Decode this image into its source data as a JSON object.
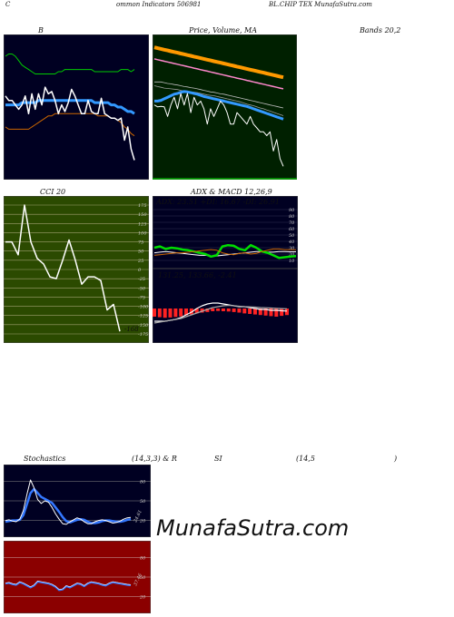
{
  "header": {
    "left": "C",
    "title": "ommon  Indicators 506981",
    "symbol": "BL.CHIP TEX  MunafaSutra.com"
  },
  "labels": {
    "bollinger": "B",
    "price_ma": "Price,  Volume,  MA",
    "bands": "Bands 20,2",
    "cci": "CCI 20",
    "adx_macd": "ADX  & MACD 12,26,9",
    "adx_values": "ADX: 23.51  +DI: 16.67 -DI: 26.91",
    "macd_values": "131.25,   133.66,  -2.41",
    "cci_value": "-168",
    "stoch_title": "Stochastics",
    "stoch_params": "(14,3,3) & R",
    "rsi_title": "SI",
    "rsi_params": "(14,5",
    "rsi_close": ")",
    "stoch_value": "24.61",
    "rsi_value": "37.46",
    "watermark": "MunafaSutra.com"
  },
  "chart_data": [
    {
      "type": "line",
      "id": "bollinger",
      "title": "B",
      "x": [
        1,
        2,
        3,
        4,
        5,
        6,
        7,
        8,
        9,
        10,
        11,
        12,
        13,
        14,
        15,
        16,
        17,
        18,
        19,
        20,
        21,
        22,
        23,
        24,
        25,
        26,
        27,
        28,
        29,
        30,
        31,
        32,
        33,
        34,
        35,
        36,
        37,
        38,
        39,
        40
      ],
      "series": [
        {
          "name": "upper",
          "values": [
            70,
            71,
            71,
            70,
            68,
            66,
            65,
            64,
            63,
            62,
            62,
            62,
            62,
            62,
            62,
            62,
            63,
            63,
            64,
            64,
            64,
            64,
            64,
            64,
            64,
            64,
            64,
            63,
            63,
            63,
            63,
            63,
            63,
            63,
            63,
            64,
            64,
            64,
            63,
            64
          ]
        },
        {
          "name": "middle",
          "values": [
            48,
            48,
            48,
            48,
            48,
            49,
            49,
            49,
            49,
            49,
            50,
            50,
            50,
            50,
            50,
            50,
            50,
            50,
            50,
            50,
            50,
            50,
            50,
            50,
            50,
            50,
            50,
            49,
            49,
            49,
            49,
            49,
            48,
            48,
            47,
            47,
            46,
            45,
            45,
            44
          ]
        },
        {
          "name": "lower",
          "values": [
            38,
            37,
            37,
            37,
            37,
            37,
            37,
            37,
            38,
            39,
            40,
            41,
            42,
            43,
            43,
            44,
            44,
            44,
            44,
            44,
            44,
            44,
            44,
            44,
            44,
            44,
            44,
            44,
            43,
            43,
            43,
            43,
            42,
            42,
            41,
            40,
            38,
            37,
            35,
            34
          ]
        },
        {
          "name": "close",
          "values": [
            52,
            50,
            50,
            48,
            46,
            48,
            52,
            44,
            53,
            46,
            53,
            48,
            56,
            53,
            54,
            50,
            44,
            48,
            45,
            49,
            55,
            52,
            48,
            44,
            44,
            50,
            45,
            44,
            44,
            51,
            44,
            43,
            42,
            42,
            41,
            42,
            32,
            38,
            28,
            23
          ]
        }
      ]
    },
    {
      "type": "line",
      "id": "price_ma",
      "title": "Price,  Volume,  MA",
      "x": [
        1,
        2,
        3,
        4,
        5,
        6,
        7,
        8,
        9,
        10,
        11,
        12,
        13,
        14,
        15,
        16,
        17,
        18,
        19,
        20,
        21,
        22,
        23,
        24,
        25,
        26,
        27,
        28,
        29,
        30,
        31,
        32,
        33,
        34,
        35,
        36,
        37,
        38,
        39,
        40
      ],
      "series": [
        {
          "name": "ma-orange",
          "values": [
            100,
            99.8,
            99.6,
            99.4,
            99.2,
            99,
            98.8,
            98.6,
            98.4,
            98.2,
            98,
            97.8,
            97.6,
            97.4,
            97.2,
            97,
            96.8,
            96.6,
            96.4,
            96.2,
            96,
            95.8,
            95.6,
            95.4,
            95.2,
            95,
            94.8,
            94.6,
            94.4,
            94.2,
            94,
            93.8,
            93.6,
            93.4,
            93.2,
            93,
            92.8,
            92.6,
            92.4,
            92.2
          ]
        },
        {
          "name": "ma-pink",
          "values": [
            97,
            96.8,
            96.6,
            96.4,
            96.2,
            96,
            95.8,
            95.6,
            95.4,
            95.2,
            95,
            94.8,
            94.6,
            94.4,
            94.2,
            94,
            93.8,
            93.6,
            93.4,
            93.2,
            93,
            92.8,
            92.6,
            92.4,
            92.2,
            92,
            91.8,
            91.6,
            91.4,
            91.2,
            91,
            90.8,
            90.6,
            90.4,
            90.2,
            90,
            89.8,
            89.6,
            89.4,
            89.2
          ]
        },
        {
          "name": "ma-white-1",
          "values": [
            91,
            91,
            91,
            90.8,
            90.6,
            90.5,
            90.3,
            90.2,
            90,
            89.8,
            89.7,
            89.5,
            89.4,
            89.2,
            89,
            88.8,
            88.6,
            88.4,
            88.3,
            88.1,
            87.9,
            87.8,
            87.6,
            87.4,
            87.2,
            87,
            86.8,
            86.6,
            86.4,
            86.2,
            86,
            85.8,
            85.6,
            85.4,
            85.2,
            85,
            84.8,
            84.6,
            84.4,
            84.2
          ]
        },
        {
          "name": "ma-white-2",
          "values": [
            90,
            89.8,
            89.6,
            89.4,
            89.3,
            89.2,
            89.1,
            89,
            88.8,
            88.6,
            88.5,
            88.4,
            88.3,
            88.2,
            88,
            87.8,
            87.6,
            87.5,
            87.4,
            87.2,
            87,
            86.8,
            86.6,
            86.4,
            86.2,
            86,
            85.8,
            85.5,
            85.2,
            85,
            84.8,
            84.5,
            84.2,
            84,
            83.7,
            83.4,
            83.1,
            82.8,
            82.5,
            82.2
          ]
        },
        {
          "name": "ma-blue",
          "values": [
            86,
            86,
            86.2,
            86.6,
            87,
            87.4,
            87.8,
            88,
            88.3,
            88.5,
            88.4,
            88.2,
            88,
            87.8,
            87.5,
            87.2,
            87,
            86.8,
            86.6,
            86.4,
            86.2,
            86,
            85.8,
            85.6,
            85.4,
            85.2,
            85,
            84.8,
            84.6,
            84.3,
            84,
            83.7,
            83.4,
            83.1,
            82.8,
            82.5,
            82.2,
            81.9,
            81.6,
            81.3
          ]
        },
        {
          "name": "close",
          "values": [
            85,
            84.5,
            84.6,
            84.5,
            82,
            85,
            87,
            84,
            88,
            85,
            88,
            83,
            87,
            85,
            86,
            84,
            80,
            84,
            82,
            84,
            86,
            85,
            83,
            80,
            80,
            83,
            82,
            81,
            80,
            82,
            80,
            79,
            78,
            78,
            77,
            78,
            73,
            76,
            71,
            69
          ]
        }
      ]
    },
    {
      "type": "line",
      "id": "cci",
      "title": "CCI 20",
      "ylim": [
        -175,
        175
      ],
      "yticks": [
        175,
        150,
        125,
        100,
        75,
        50,
        25,
        0,
        -25,
        -50,
        -75,
        -100,
        -125,
        -150,
        -175
      ],
      "series": [
        {
          "name": "cci",
          "values": [
            75,
            75,
            40,
            175,
            75,
            30,
            15,
            -20,
            -25,
            25,
            80,
            25,
            -40,
            -20,
            -20,
            -30,
            -110,
            -95,
            -168
          ]
        }
      ]
    },
    {
      "type": "line",
      "id": "adx",
      "title": "ADX: 23.51  +DI: 16.67 -DI: 26.91",
      "series": [
        {
          "name": "adx",
          "values": [
            22,
            23,
            24,
            23,
            22,
            21,
            20,
            19,
            18,
            18,
            17,
            17,
            18,
            19,
            20,
            21,
            22,
            23,
            24,
            24,
            23,
            23,
            24,
            24,
            23.5,
            23.51
          ]
        },
        {
          "name": "plus-di",
          "values": [
            30,
            32,
            28,
            30,
            29,
            27,
            26,
            24,
            22,
            20,
            16,
            18,
            32,
            34,
            33,
            28,
            26,
            34,
            30,
            24,
            22,
            18,
            14,
            15,
            16,
            16.67
          ]
        },
        {
          "name": "minus-di",
          "values": [
            18,
            19,
            20,
            21,
            22,
            22,
            23,
            24,
            25,
            26,
            27,
            26,
            22,
            20,
            19,
            21,
            22,
            20,
            21,
            24,
            26,
            28,
            28,
            27,
            27,
            26.91
          ]
        }
      ]
    },
    {
      "type": "line",
      "id": "macd",
      "title": "131.25,   133.66,  -2.41",
      "series": [
        {
          "name": "macd",
          "values": [
            120,
            120,
            120,
            121,
            122,
            124,
            127,
            130,
            134,
            137,
            139,
            140,
            140,
            139,
            138,
            137,
            136,
            136,
            135,
            134,
            133,
            133,
            132,
            132,
            131.5,
            131.25
          ]
        },
        {
          "name": "signal",
          "values": [
            118,
            119,
            120,
            121,
            122,
            123,
            125,
            127,
            129,
            131,
            133,
            135,
            136,
            137,
            137.5,
            137,
            136.5,
            136,
            135.8,
            135.5,
            135,
            134.8,
            134.5,
            134.2,
            133.9,
            133.66
          ]
        },
        {
          "name": "histogram",
          "values": [
            -3,
            -3.2,
            -3.4,
            -3.3,
            -3.1,
            -2.9,
            -2.5,
            -2.2,
            -1.8,
            -1.5,
            -1.3,
            -1,
            -0.9,
            -1,
            -1.1,
            -1.3,
            -1.5,
            -1.8,
            -2,
            -2.2,
            -2.4,
            -2.6,
            -2.8,
            -3,
            -2.7,
            -2.41
          ]
        }
      ]
    },
    {
      "type": "line",
      "id": "stochastics",
      "title": "Stochastics",
      "ylim": [
        0,
        100
      ],
      "yticks": [
        80,
        50,
        20
      ],
      "series": [
        {
          "name": "k",
          "values": [
            20,
            21,
            19,
            18,
            22,
            35,
            60,
            82,
            70,
            52,
            46,
            50,
            48,
            40,
            30,
            22,
            15,
            14,
            18,
            21,
            24,
            22,
            18,
            15,
            15,
            18,
            20,
            21,
            20,
            18,
            16,
            17,
            19,
            22,
            24,
            24.61
          ]
        },
        {
          "name": "d",
          "values": [
            18,
            19,
            20,
            20,
            21,
            28,
            45,
            62,
            68,
            62,
            56,
            53,
            50,
            47,
            40,
            33,
            25,
            19,
            17,
            19,
            21,
            22,
            21,
            18,
            16,
            16,
            17,
            19,
            20,
            20,
            19,
            18,
            18,
            19,
            21,
            22
          ]
        }
      ]
    },
    {
      "type": "line",
      "id": "rsi",
      "title": "SI",
      "ylim": [
        0,
        100
      ],
      "yticks": [
        80,
        50,
        20
      ],
      "series": [
        {
          "name": "rsi",
          "values": [
            40,
            41,
            39,
            38,
            42,
            40,
            37,
            34,
            37,
            43,
            42,
            41,
            40,
            38,
            35,
            30,
            31,
            36,
            34,
            37,
            40,
            39,
            36,
            40,
            42,
            41,
            40,
            38,
            37,
            40,
            42,
            41,
            40,
            39,
            38,
            37.46
          ]
        }
      ]
    }
  ]
}
